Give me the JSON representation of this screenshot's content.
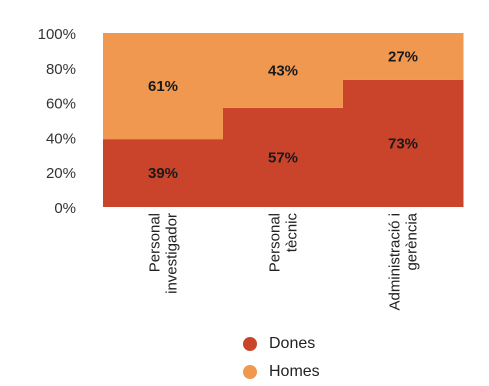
{
  "chart_data": {
    "type": "bar",
    "stacked": true,
    "categories": [
      [
        "Personal",
        "investigador"
      ],
      [
        "Personal",
        "tècnic"
      ],
      [
        "Administració i",
        "gerència"
      ]
    ],
    "series": [
      {
        "name": "Dones",
        "values": [
          39,
          57,
          73
        ],
        "labels": [
          "39%",
          "57%",
          "73%"
        ],
        "color": "#c9442b"
      },
      {
        "name": "Homes",
        "values": [
          61,
          43,
          27
        ],
        "labels": [
          "61%",
          "43%",
          "27%"
        ],
        "color": "#f0984f"
      }
    ],
    "yticks": [
      "0%",
      "20%",
      "40%",
      "60%",
      "80%",
      "100%"
    ],
    "ylim": [
      0,
      100
    ],
    "legend_position": "bottom",
    "grid": false
  }
}
